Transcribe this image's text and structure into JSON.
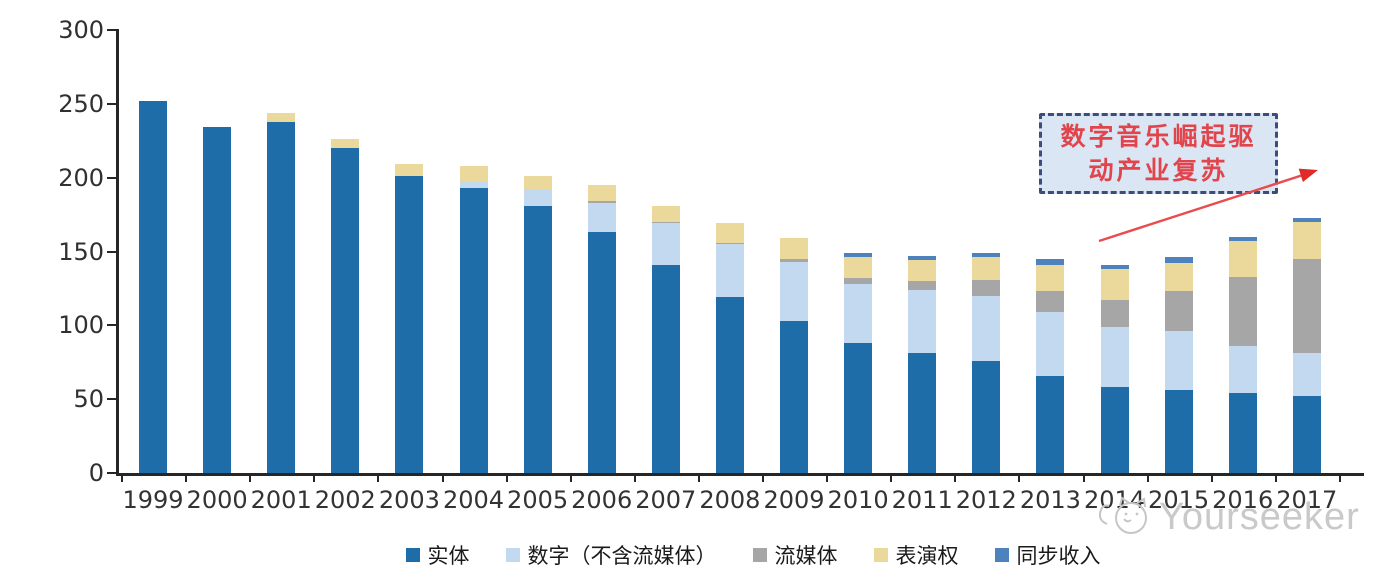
{
  "chart_data": {
    "type": "bar",
    "stacked": true,
    "categories": [
      "1999",
      "2000",
      "2001",
      "2002",
      "2003",
      "2004",
      "2005",
      "2006",
      "2007",
      "2008",
      "2009",
      "2010",
      "2011",
      "2012",
      "2013",
      "2014",
      "2015",
      "2016",
      "2017"
    ],
    "series": [
      {
        "name": "实体",
        "color": "#1E6CA8",
        "values": [
          252,
          234,
          238,
          220,
          201,
          193,
          181,
          163,
          141,
          119,
          103,
          88,
          81,
          76,
          66,
          58,
          56,
          54,
          52
        ]
      },
      {
        "name": "数字（不含流媒体）",
        "color": "#C3D9F0",
        "values": [
          0,
          0,
          0,
          0,
          0,
          5,
          11,
          20,
          28,
          36,
          40,
          40,
          43,
          44,
          43,
          41,
          40,
          32,
          29
        ]
      },
      {
        "name": "流媒体",
        "color": "#A6A6A6",
        "values": [
          0,
          0,
          0,
          0,
          0,
          0,
          0,
          1,
          1,
          1,
          2,
          4,
          6,
          11,
          14,
          18,
          27,
          47,
          64
        ]
      },
      {
        "name": "表演权",
        "color": "#EBD89B",
        "values": [
          0,
          0,
          6,
          6,
          8,
          10,
          9,
          11,
          11,
          13,
          14,
          14,
          14,
          15,
          18,
          21,
          19,
          24,
          25
        ]
      },
      {
        "name": "同步收入",
        "color": "#4D82BC",
        "values": [
          0,
          0,
          0,
          0,
          0,
          0,
          0,
          0,
          0,
          0,
          0,
          3,
          3,
          3,
          4,
          3,
          4,
          3,
          3
        ]
      }
    ],
    "ylim": [
      0,
      300
    ],
    "yticks": [
      0,
      50,
      100,
      150,
      200,
      250,
      300
    ],
    "grid": false,
    "legend_position": "bottom",
    "title": ""
  },
  "annotation": {
    "line1": "数字音乐崛起驱",
    "line2": "动产业复苏",
    "box_border_color": "#3D4C7A",
    "box_fill_color": "#DAE6F3",
    "text_color": "#E2444C",
    "arrow_color": "#E84C4C"
  },
  "watermark": {
    "text": "Yourseeker",
    "icon": "cat-logo-icon",
    "color": "#C9C9C9"
  },
  "axis_color": "#262626"
}
